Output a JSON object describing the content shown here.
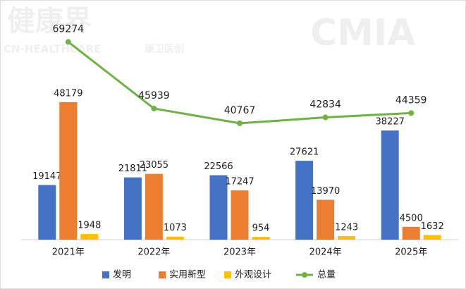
{
  "chart_data": {
    "type": "bar",
    "categories": [
      "2021年",
      "2022年",
      "2023年",
      "2024年",
      "2025年"
    ],
    "series": [
      {
        "name": "发明",
        "color": "#4472c4",
        "values": [
          19147,
          21811,
          22566,
          27621,
          38227
        ]
      },
      {
        "name": "实用新型",
        "color": "#ed7d31",
        "values": [
          48179,
          23055,
          17247,
          13970,
          4500
        ]
      },
      {
        "name": "外观设计",
        "color": "#ffc000",
        "values": [
          1948,
          1073,
          954,
          1243,
          1632
        ]
      },
      {
        "name": "总量",
        "color": "#70b244",
        "type": "line",
        "values": [
          69274,
          45939,
          40767,
          42834,
          44359
        ]
      }
    ],
    "ylim": [
      0,
      80000
    ],
    "watermarks": [
      "健康界",
      "CN-HEALTHCARE",
      "康卫医创",
      "CMIA"
    ]
  }
}
